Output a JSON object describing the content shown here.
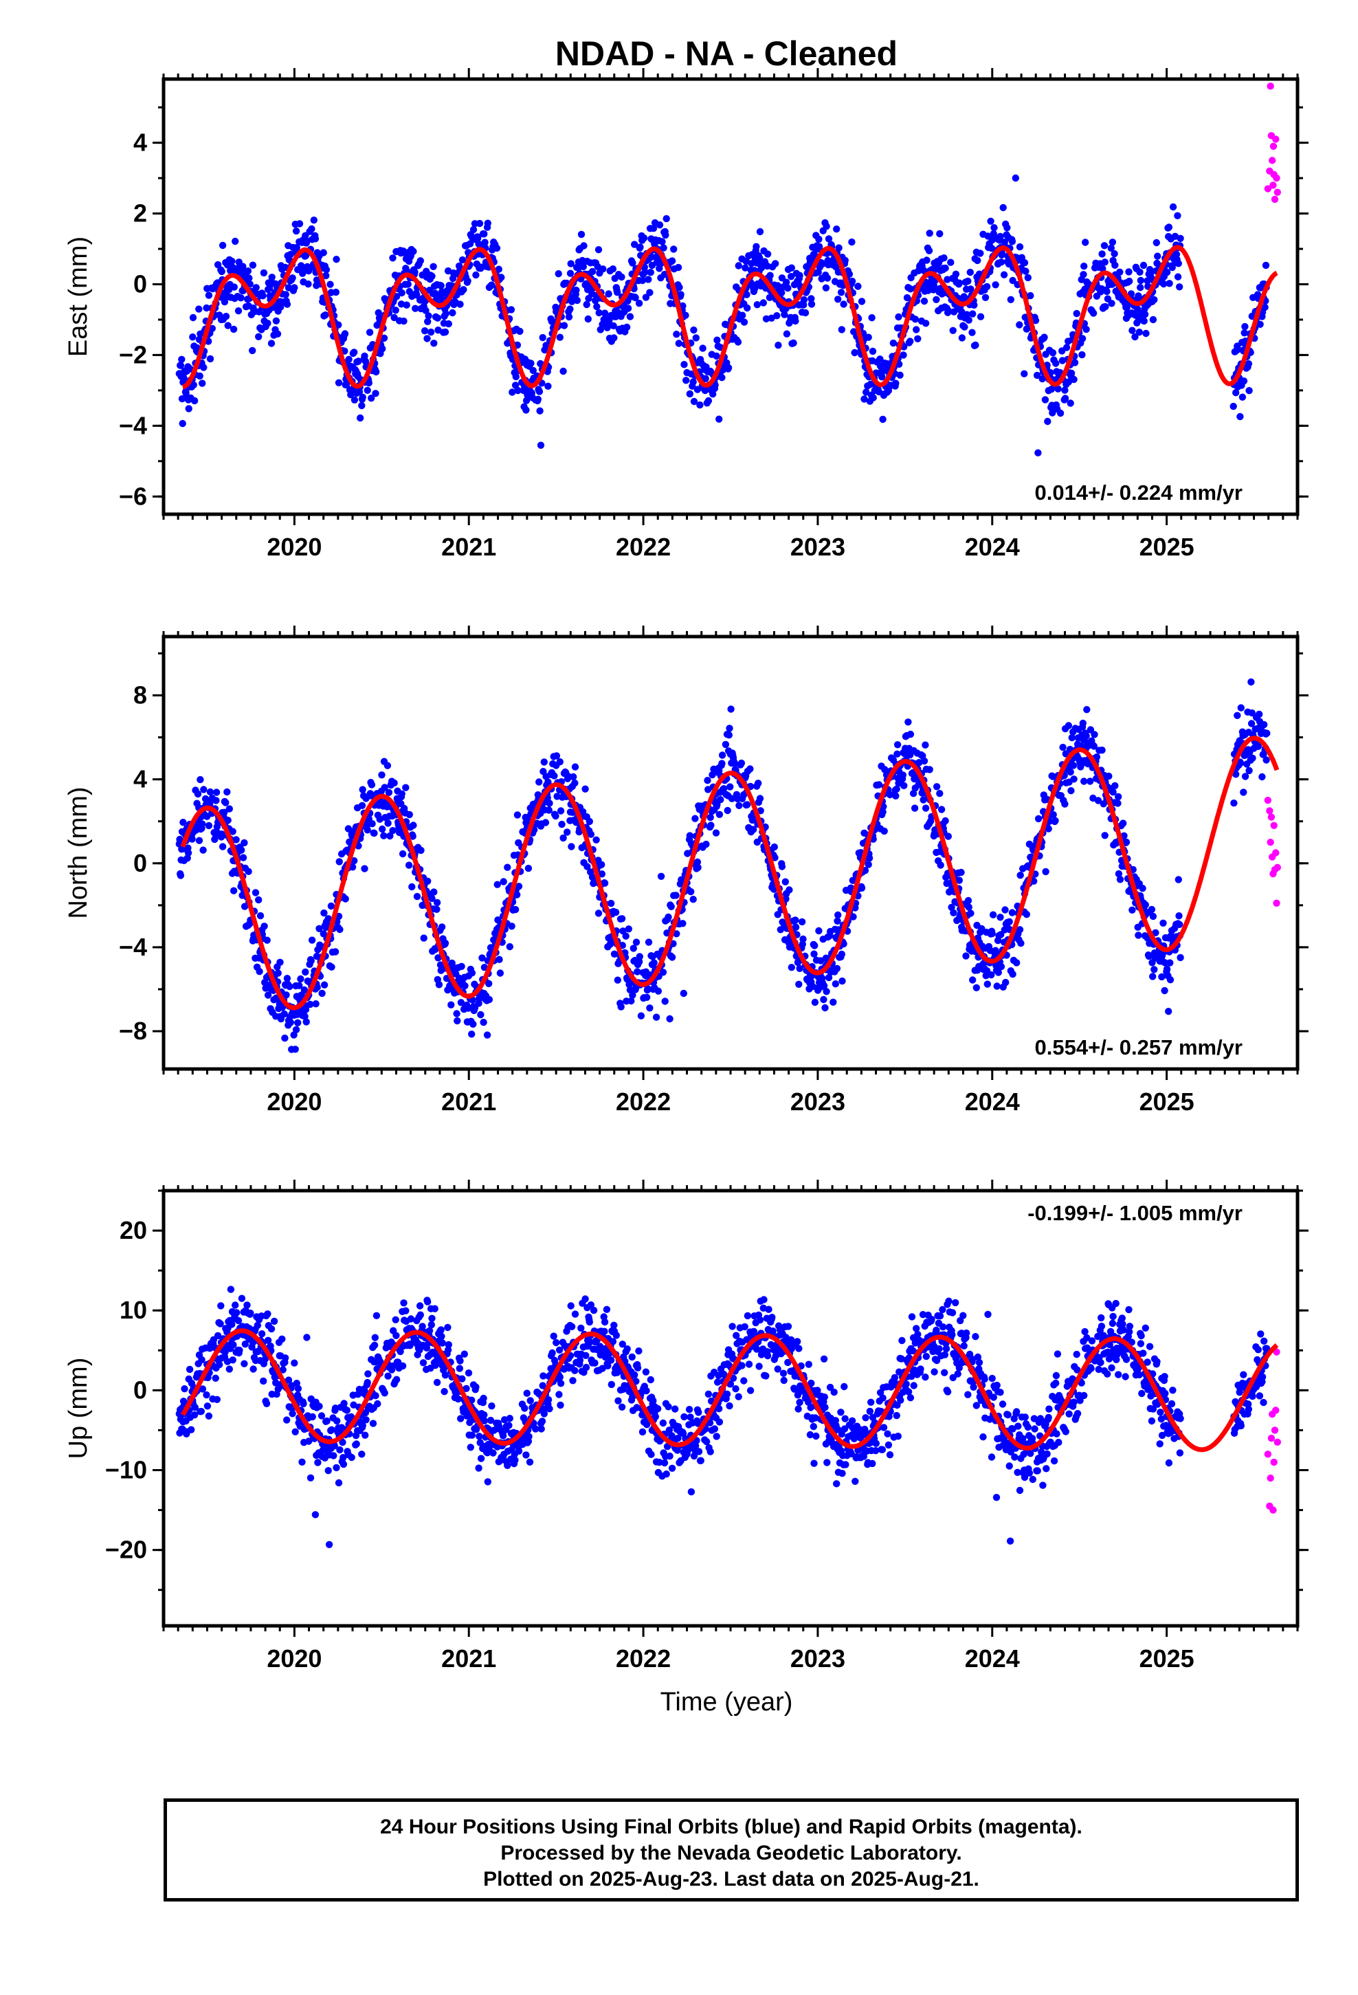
{
  "chart_data": {
    "title": "NDAD  - NA - Cleaned",
    "xlabel": "Time (year)",
    "x_ticks": [
      "2020",
      "2021",
      "2022",
      "2023",
      "2024",
      "2025"
    ],
    "xlim": [
      2019.25,
      2025.75
    ],
    "colors": {
      "final_orbits": "#0000ff",
      "rapid_orbits": "#ff00ff",
      "model": "#ff0000"
    },
    "panels": [
      {
        "type": "scatter",
        "ylabel": "East (mm)",
        "ylim": [
          -6.5,
          5.8
        ],
        "y_ticks": [
          4,
          2,
          0,
          -2,
          -4,
          -6
        ],
        "y_tick_labels": [
          "4",
          "2",
          "0",
          "−2",
          "−4",
          "−6"
        ],
        "rate_text": "0.014+/- 0.224 mm/yr",
        "rate_position": "bottom-right",
        "model": {
          "offset": -0.6,
          "rate": 0.014,
          "annual_amp": 1.2,
          "annual_peak": 0.9,
          "semi_amp": 1.1,
          "semi_peak": 0.1
        },
        "rapid_points": [
          [
            2025.58,
            2.7
          ],
          [
            2025.59,
            3.2
          ],
          [
            2025.595,
            5.6
          ],
          [
            2025.6,
            4.2
          ],
          [
            2025.605,
            3.5
          ],
          [
            2025.61,
            2.8
          ],
          [
            2025.612,
            3.9
          ],
          [
            2025.615,
            3.1
          ],
          [
            2025.62,
            2.4
          ],
          [
            2025.625,
            4.1
          ],
          [
            2025.63,
            3.0
          ],
          [
            2025.635,
            2.6
          ]
        ]
      },
      {
        "type": "scatter",
        "ylabel": "North (mm)",
        "ylim": [
          -9.8,
          10.8
        ],
        "y_ticks": [
          8,
          4,
          0,
          -4,
          -8
        ],
        "y_tick_labels": [
          "8",
          "4",
          "0",
          "−4",
          "−8"
        ],
        "rate_text": "0.554+/- 0.257 mm/yr",
        "rate_position": "bottom-right",
        "model": {
          "offset": -0.6,
          "rate": 0.554,
          "annual_amp": 4.9,
          "annual_peak": 0.5,
          "semi_amp": 0.0,
          "semi_peak": 0.0
        },
        "rapid_points": [
          [
            2025.58,
            3.0
          ],
          [
            2025.59,
            2.5
          ],
          [
            2025.595,
            1.0
          ],
          [
            2025.6,
            2.2
          ],
          [
            2025.605,
            0.3
          ],
          [
            2025.61,
            -0.5
          ],
          [
            2025.615,
            1.8
          ],
          [
            2025.62,
            -0.3
          ],
          [
            2025.625,
            0.5
          ],
          [
            2025.63,
            -1.9
          ],
          [
            2025.635,
            -0.2
          ]
        ]
      },
      {
        "type": "scatter",
        "ylabel": "Up (mm)",
        "ylim": [
          -29.5,
          25.0
        ],
        "y_ticks": [
          20,
          10,
          0,
          -10,
          -20
        ],
        "y_tick_labels": [
          "20",
          "10",
          "0",
          "−10",
          "−20"
        ],
        "rate_text": "-0.199+/- 1.005 mm/yr",
        "rate_position": "top-right",
        "model": {
          "offset": 0.0,
          "rate": -0.199,
          "annual_amp": 6.9,
          "annual_peak": 0.7,
          "semi_amp": 0.0,
          "semi_peak": 0.0
        },
        "rapid_points": [
          [
            2025.58,
            -8.0
          ],
          [
            2025.59,
            -14.5
          ],
          [
            2025.595,
            -11.0
          ],
          [
            2025.6,
            -6.0
          ],
          [
            2025.605,
            -3.0
          ],
          [
            2025.61,
            -15.0
          ],
          [
            2025.615,
            -9.0
          ],
          [
            2025.62,
            -5.0
          ],
          [
            2025.625,
            -2.5
          ],
          [
            2025.63,
            4.8
          ],
          [
            2025.635,
            -6.5
          ]
        ]
      }
    ]
  },
  "caption": {
    "line1": "24 Hour Positions Using Final Orbits (blue) and Rapid Orbits (magenta).",
    "line2": "Processed by the Nevada Geodetic Laboratory.",
    "line3": "Plotted on 2025-Aug-23. Last data on 2025-Aug-21."
  }
}
